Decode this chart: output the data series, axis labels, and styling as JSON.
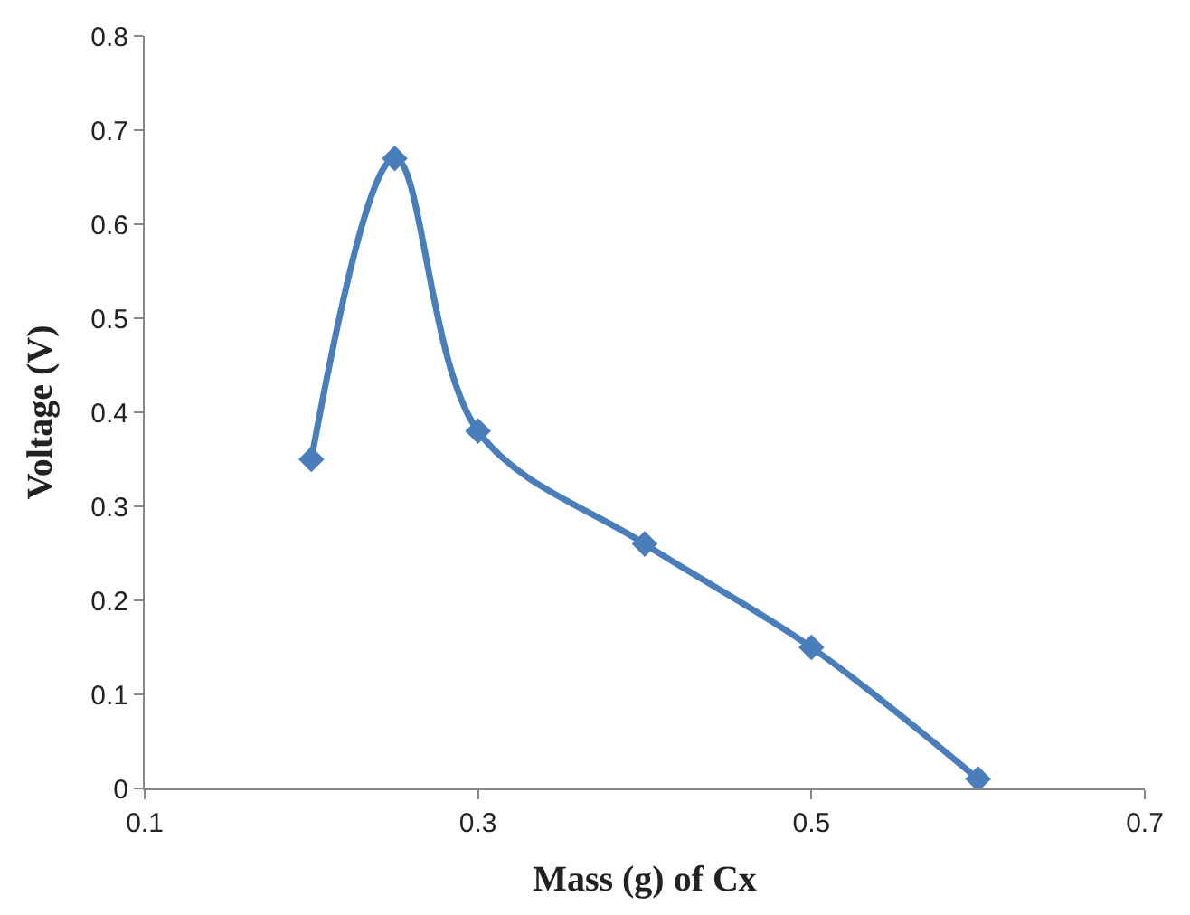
{
  "chart_data": {
    "type": "line",
    "xlabel": "Mass (g) of Cx",
    "ylabel": "Voltage (V)",
    "x": [
      0.2,
      0.25,
      0.3,
      0.4,
      0.5,
      0.6
    ],
    "series": [
      {
        "color": "#4a7ebb",
        "values": [
          0.35,
          0.67,
          0.38,
          0.26,
          0.15,
          0.01
        ]
      }
    ],
    "xlim": [
      0.1,
      0.7
    ],
    "xticks": [
      0.1,
      0.3,
      0.5,
      0.7
    ],
    "ylim": [
      0,
      0.8
    ],
    "yticks": [
      0,
      0.1,
      0.2,
      0.3,
      0.4,
      0.5,
      0.6,
      0.7,
      0.8
    ],
    "legend": false,
    "marker": "diamond",
    "line_style": "solid"
  }
}
